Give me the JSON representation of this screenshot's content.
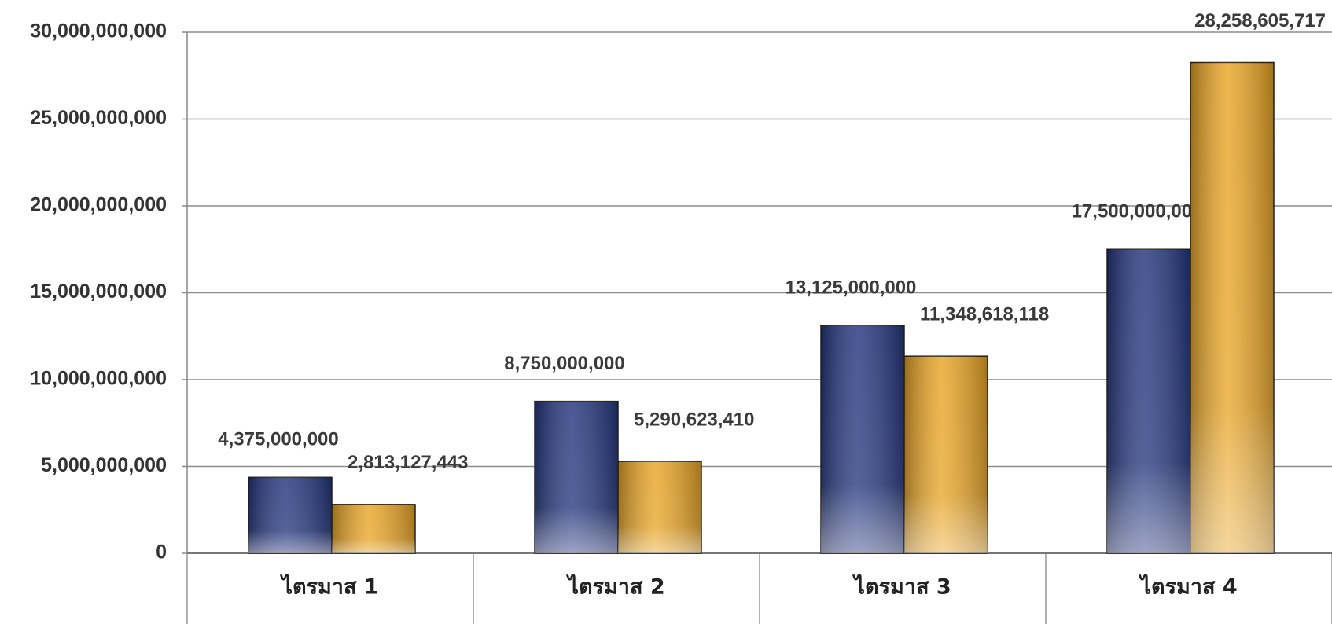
{
  "chart_data": {
    "type": "bar",
    "categories": [
      "ไตรมาส 1",
      "ไตรมาส 2",
      "ไตรมาส 3",
      "ไตรมาส 4"
    ],
    "series": [
      {
        "color": "#24367e",
        "values": [
          4375000000,
          8750000000,
          13125000000,
          17500000000
        ],
        "value_labels": [
          "4,375,000,000",
          "8,750,000,000",
          "13,125,000,000",
          "17,500,000,000"
        ]
      },
      {
        "color": "#e9a526",
        "values": [
          2813127443,
          5290623410,
          11348618118,
          28258605717
        ],
        "value_labels": [
          "2,813,127,443",
          "5,290,623,410",
          "11,348,618,118",
          "28,258,605,717"
        ]
      }
    ],
    "ylim": [
      0,
      30000000000
    ],
    "yticks": [
      0,
      {
        "value": 5000000000,
        "label": "5,000,000,000"
      },
      {
        "value": 10000000000,
        "label": "10,000,000,000"
      },
      {
        "value": 15000000000,
        "label": "15,000,000,000"
      },
      {
        "value": 20000000000,
        "label": "20,000,000,000"
      },
      {
        "value": 25000000000,
        "label": "25,000,000,000"
      },
      {
        "value": 30000000000,
        "label": "30,000,000,000"
      }
    ],
    "grid": true
  }
}
